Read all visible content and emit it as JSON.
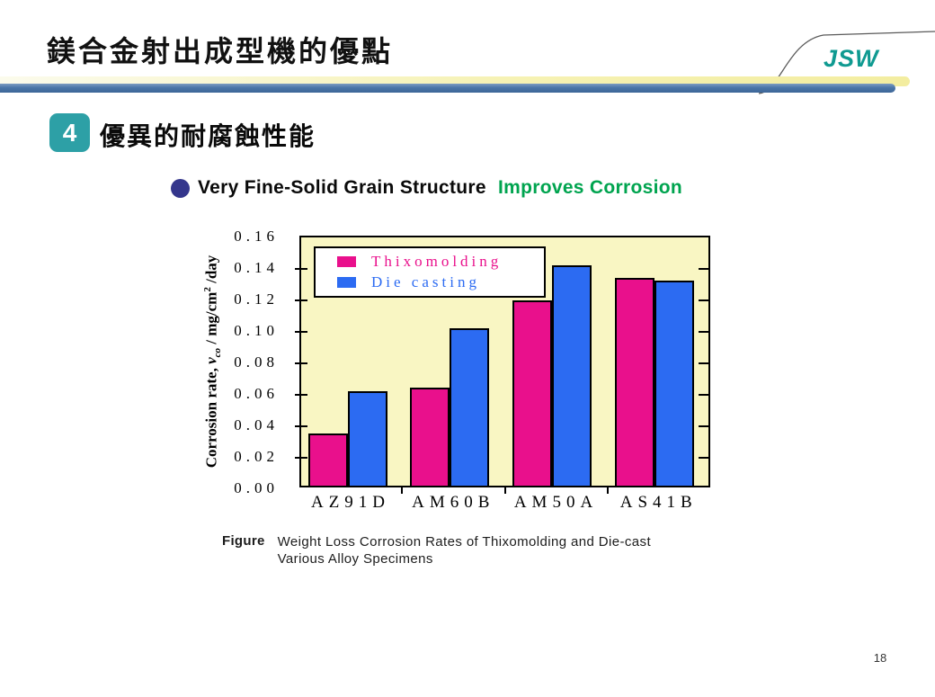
{
  "header": {
    "title": "鎂合金射出成型機的優點",
    "logo": "JSW",
    "logo_color": "#0f9a91"
  },
  "section": {
    "badge": "4",
    "badge_color": "#2da0a6",
    "heading": "優異的耐腐蝕性能"
  },
  "bullet": {
    "text_black": "Very Fine-Solid Grain Structure",
    "text_green": "Improves Corrosion",
    "green_color": "#00a44f"
  },
  "chart_data": {
    "type": "bar",
    "categories": [
      "AZ91D",
      "AM60B",
      "AM50A",
      "AS41B"
    ],
    "series": [
      {
        "name": "Thixomolding",
        "color": "#e9108c",
        "values": [
          0.033,
          0.062,
          0.118,
          0.132
        ]
      },
      {
        "name": "Die casting",
        "color": "#2c6bf2",
        "values": [
          0.06,
          0.1,
          0.14,
          0.13
        ]
      }
    ],
    "title": "",
    "xlabel": "",
    "ylabel_parts": {
      "pre": "Corrosion rate, ",
      "symbol": "ν",
      "sub": "co",
      "mid": " / mg/cm",
      "sup": "2",
      "post": " /day"
    },
    "yticks": [
      "0.00",
      "0.02",
      "0.04",
      "0.06",
      "0.08",
      "0.10",
      "0.12",
      "0.14",
      "0.16"
    ],
    "ylim": [
      0,
      0.16
    ],
    "plot_background": "#f9f6c3",
    "grid": false,
    "legend_position": "top-left"
  },
  "figure_caption": {
    "label": "Figure",
    "line1": "Weight Loss Corrosion Rates of Thixomolding and Die-cast",
    "line2": "Various Alloy Specimens"
  },
  "footer": {
    "page_number": "18"
  }
}
